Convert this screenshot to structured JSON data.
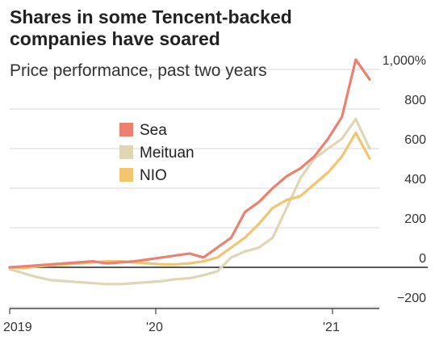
{
  "chart_data": {
    "type": "line",
    "title": "Shares in some Tencent-backed companies have soared",
    "subtitle": "Price performance, past two years",
    "xlabel": "",
    "ylabel": "",
    "ylim": [
      -250,
      1100
    ],
    "x_ticks": [
      "2019",
      "'20",
      "'21"
    ],
    "y_ticks": [
      {
        "value": 1000,
        "label": "1,000%"
      },
      {
        "value": 800,
        "label": "800"
      },
      {
        "value": 600,
        "label": "600"
      },
      {
        "value": 400,
        "label": "400"
      },
      {
        "value": 200,
        "label": "200"
      },
      {
        "value": 0,
        "label": "0"
      },
      {
        "value": -200,
        "label": "−200"
      }
    ],
    "legend_position": "upper-left",
    "grid": true,
    "x": [
      "2019-01",
      "2019-02",
      "2019-03",
      "2019-04",
      "2019-05",
      "2019-06",
      "2019-07",
      "2019-08",
      "2019-09",
      "2019-10",
      "2019-11",
      "2019-12",
      "2020-01",
      "2020-02",
      "2020-03",
      "2020-04",
      "2020-05",
      "2020-06",
      "2020-07",
      "2020-08",
      "2020-09",
      "2020-10",
      "2020-11",
      "2020-12",
      "2021-01",
      "2021-02",
      "2021-03"
    ],
    "series": [
      {
        "name": "Sea",
        "color": "#ec8170",
        "values": [
          0,
          5,
          10,
          15,
          20,
          25,
          30,
          20,
          25,
          30,
          40,
          50,
          60,
          70,
          50,
          100,
          150,
          280,
          330,
          400,
          460,
          500,
          560,
          650,
          760,
          1050,
          950
        ]
      },
      {
        "name": "Meituan",
        "color": "#dfd6b5",
        "values": [
          -10,
          -30,
          -50,
          -65,
          -70,
          -75,
          -80,
          -85,
          -85,
          -80,
          -75,
          -70,
          -60,
          -55,
          -40,
          -20,
          50,
          80,
          100,
          150,
          300,
          450,
          550,
          600,
          650,
          750,
          600
        ]
      },
      {
        "name": "NIO",
        "color": "#f5c46e",
        "values": [
          0,
          -5,
          5,
          10,
          15,
          20,
          25,
          30,
          30,
          25,
          20,
          15,
          15,
          20,
          30,
          50,
          100,
          150,
          220,
          300,
          340,
          360,
          420,
          480,
          560,
          680,
          550
        ]
      }
    ]
  }
}
